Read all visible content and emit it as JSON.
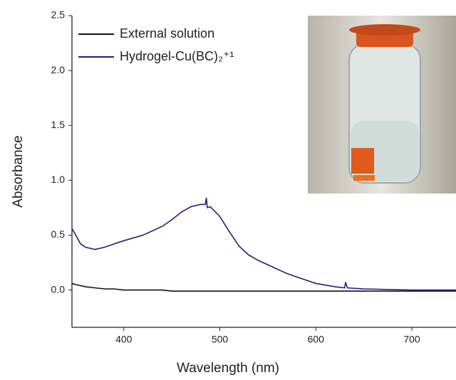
{
  "chart_data": {
    "type": "line",
    "x_label": "Wavelength (nm)",
    "y_label": "Absorbance",
    "x": [
      346,
      350,
      355,
      360,
      370,
      380,
      390,
      400,
      420,
      440,
      450,
      460,
      470,
      480,
      485,
      486,
      487,
      490,
      500,
      510,
      520,
      530,
      540,
      550,
      560,
      570,
      580,
      590,
      600,
      620,
      630,
      631,
      633,
      650,
      700,
      746
    ],
    "series": [
      {
        "name": "External solution",
        "color": "#111111",
        "values": [
          0.06,
          0.05,
          0.04,
          0.03,
          0.02,
          0.01,
          0.01,
          0.0,
          0.0,
          0.0,
          -0.01,
          -0.01,
          -0.01,
          -0.01,
          -0.01,
          -0.01,
          -0.01,
          -0.01,
          -0.01,
          -0.01,
          -0.01,
          -0.01,
          -0.01,
          -0.01,
          -0.01,
          -0.01,
          -0.01,
          -0.01,
          -0.01,
          -0.01,
          -0.01,
          -0.01,
          -0.01,
          -0.01,
          -0.01,
          -0.01
        ]
      },
      {
        "name": "Hydrogel-Cu(BC)₂⁺¹",
        "color": "#1f1f7a",
        "values": [
          0.56,
          0.5,
          0.42,
          0.39,
          0.37,
          0.39,
          0.42,
          0.45,
          0.5,
          0.58,
          0.64,
          0.71,
          0.76,
          0.78,
          0.78,
          0.84,
          0.75,
          0.76,
          0.67,
          0.53,
          0.4,
          0.32,
          0.27,
          0.23,
          0.19,
          0.15,
          0.12,
          0.09,
          0.06,
          0.03,
          0.02,
          0.07,
          0.02,
          0.01,
          0.0,
          0.0
        ]
      }
    ],
    "xlim": [
      346,
      746
    ],
    "xticks": [
      400,
      500,
      600,
      700
    ],
    "ylim": [
      -0.34,
      2.5
    ],
    "yticks": [
      {
        "value": 0,
        "label": "0.0"
      },
      0.5,
      {
        "value": 1,
        "label": "1.0"
      },
      1.5,
      {
        "value": 2,
        "label": "2.0"
      },
      2.5
    ],
    "legend": "upper left"
  }
}
